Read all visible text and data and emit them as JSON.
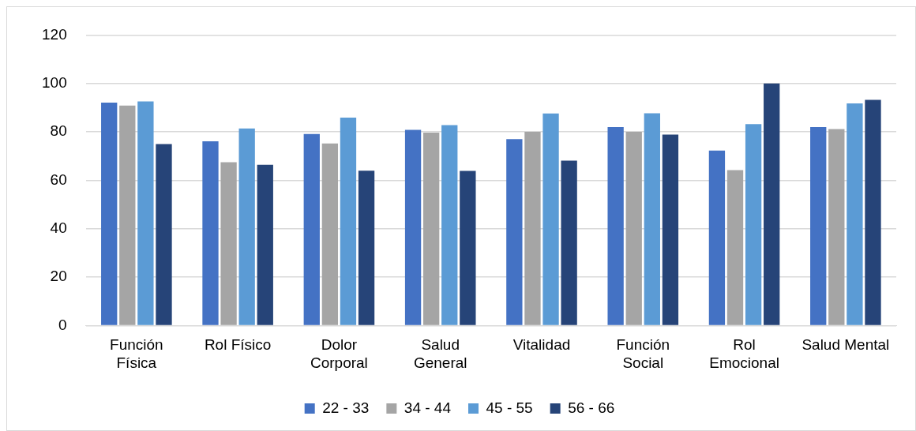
{
  "chart_data": {
    "type": "bar",
    "categories": [
      "Función Física",
      "Rol Físico",
      "Dolor Corporal",
      "Salud General",
      "Vitalidad",
      "Función Social",
      "Rol Emocional",
      "Salud Mental"
    ],
    "series": [
      {
        "name": "22 - 33",
        "color": "#4472c4",
        "values": [
          92.1,
          76.1,
          79.1,
          80.8,
          77,
          82,
          72.3,
          82
        ]
      },
      {
        "name": "34 - 44",
        "color": "#a5a5a5",
        "values": [
          90.9,
          67.5,
          75.2,
          79.7,
          80,
          80,
          64.2,
          81.2
        ]
      },
      {
        "name": "45 - 55",
        "color": "#5b9bd5",
        "values": [
          92.6,
          81.4,
          85.9,
          82.8,
          87.6,
          87.7,
          83.2,
          91.8
        ]
      },
      {
        "name": "56 - 66",
        "color": "#264478",
        "values": [
          75,
          66.4,
          64,
          63.9,
          68.1,
          78.9,
          100,
          93.2
        ]
      }
    ],
    "ylim": [
      0,
      120
    ],
    "yticks": [
      0,
      20,
      40,
      60,
      80,
      100,
      120
    ],
    "grid": "y",
    "legend": "bottom"
  }
}
